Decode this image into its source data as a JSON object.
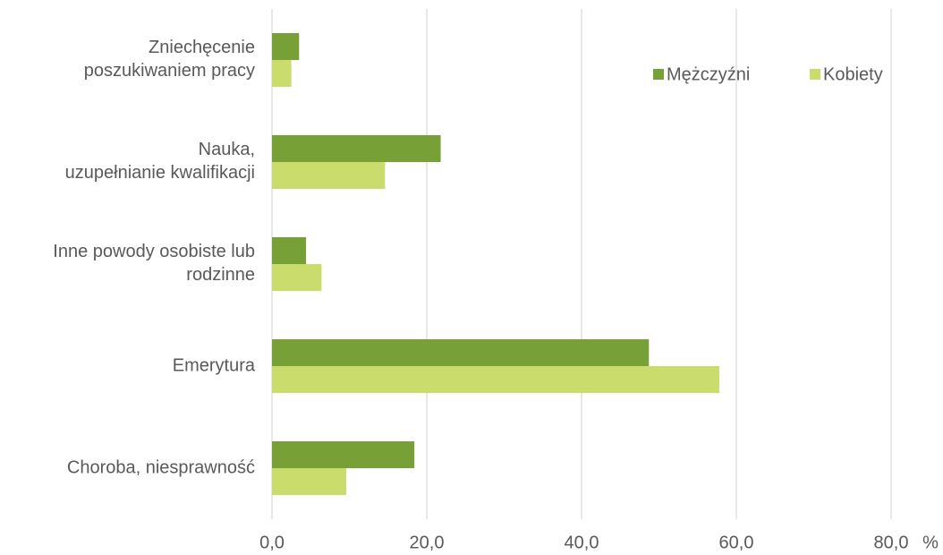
{
  "chart_data": {
    "type": "bar",
    "orientation": "horizontal",
    "categories": [
      "Zniechęcenie\nposzukiwaniem pracy",
      "Nauka,\nuzupełnianie kwalifikacji",
      "Inne powody osobiste lub\nrodzinne",
      "Emerytura",
      "Choroba, niesprawność"
    ],
    "series": [
      {
        "name": "Mężczyźni",
        "color": "#77a136",
        "values": [
          3.5,
          21.8,
          4.4,
          48.7,
          18.4
        ]
      },
      {
        "name": "Kobiety",
        "color": "#c9dc6c",
        "values": [
          2.5,
          14.6,
          6.4,
          57.8,
          9.6
        ]
      }
    ],
    "xlim": [
      0,
      80
    ],
    "xticks": [
      {
        "value": 0,
        "label": "0,0"
      },
      {
        "value": 20,
        "label": "20,0"
      },
      {
        "value": 40,
        "label": "40,0"
      },
      {
        "value": 60,
        "label": "60,0"
      },
      {
        "value": 80,
        "label": "80,0"
      }
    ],
    "x_unit_label": "%",
    "grid": true,
    "legend": "top-right"
  }
}
